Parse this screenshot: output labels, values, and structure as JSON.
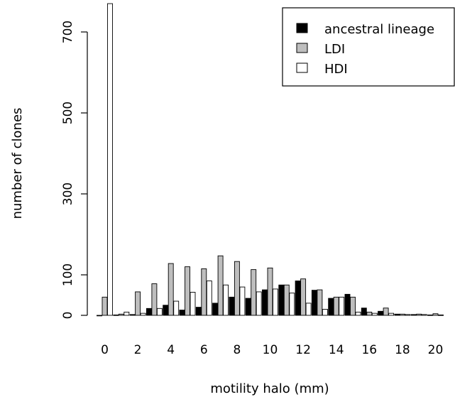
{
  "chart_data": {
    "type": "bar",
    "title": "",
    "xlabel": "motility halo (mm)",
    "ylabel": "number of clones",
    "ylim": [
      0,
      780
    ],
    "yticks": [
      0,
      100,
      300,
      500,
      700
    ],
    "xtick_labels": [
      "0",
      "2",
      "4",
      "6",
      "8",
      "10",
      "12",
      "14",
      "16",
      "18",
      "20"
    ],
    "categories": [
      "0",
      "1",
      "2",
      "3",
      "4",
      "5",
      "6",
      "7",
      "8",
      "9",
      "10",
      "11",
      "12",
      "13",
      "14",
      "15",
      "16",
      "17",
      "18",
      "19",
      "20"
    ],
    "series": [
      {
        "name": "ancestral lineage",
        "color": "#000000",
        "values": [
          0,
          1,
          2,
          17,
          25,
          13,
          20,
          30,
          45,
          42,
          63,
          75,
          85,
          62,
          42,
          52,
          18,
          10,
          3,
          2,
          1
        ]
      },
      {
        "name": "LDI",
        "color": "#bebebe",
        "values": [
          45,
          3,
          58,
          78,
          128,
          120,
          115,
          147,
          133,
          113,
          117,
          75,
          90,
          63,
          45,
          45,
          8,
          18,
          3,
          3,
          4
        ]
      },
      {
        "name": "HDI",
        "color": "#ffffff",
        "values": [
          770,
          8,
          5,
          17,
          35,
          57,
          85,
          75,
          70,
          58,
          65,
          55,
          30,
          15,
          45,
          8,
          5,
          5,
          2,
          2,
          1
        ]
      }
    ],
    "legend_position": "top-right",
    "grid": false
  }
}
